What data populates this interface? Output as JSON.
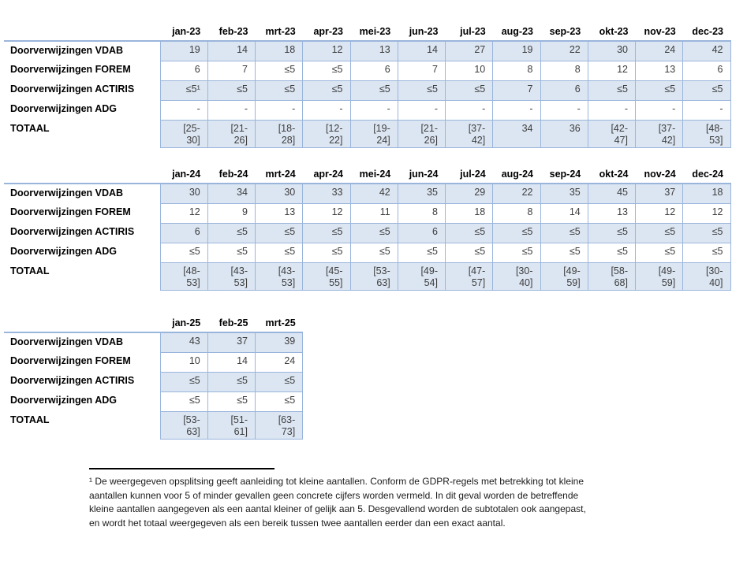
{
  "styles": {
    "cell_fill": "#dce6f2",
    "cell_border": "#9ab5dc",
    "footnote_rule_color": "#000000"
  },
  "tables": [
    {
      "name": "referrals-2023",
      "months": [
        "jan-23",
        "feb-23",
        "mrt-23",
        "apr-23",
        "mei-23",
        "jun-23",
        "jul-23",
        "aug-23",
        "sep-23",
        "okt-23",
        "nov-23",
        "dec-23"
      ],
      "rows": [
        {
          "label": "Doorverwijzingen VDAB",
          "shaded": true,
          "total": false,
          "values": [
            "19",
            "14",
            "18",
            "12",
            "13",
            "14",
            "27",
            "19",
            "22",
            "30",
            "24",
            "42"
          ]
        },
        {
          "label": "Doorverwijzingen FOREM",
          "shaded": false,
          "total": false,
          "values": [
            "6",
            "7",
            "≤5",
            "≤5",
            "6",
            "7",
            "10",
            "8",
            "8",
            "12",
            "13",
            "6"
          ]
        },
        {
          "label": "Doorverwijzingen ACTIRIS",
          "shaded": true,
          "total": false,
          "values": [
            "≤5¹",
            "≤5",
            "≤5",
            "≤5",
            "≤5",
            "≤5",
            "≤5",
            "7",
            "6",
            "≤5",
            "≤5",
            "≤5"
          ]
        },
        {
          "label": "Doorverwijzingen ADG",
          "shaded": false,
          "total": false,
          "values": [
            "-",
            "-",
            "-",
            "-",
            "-",
            "-",
            "-",
            "-",
            "-",
            "-",
            "-",
            "-"
          ]
        },
        {
          "label": "TOTAAL",
          "shaded": true,
          "total": true,
          "values": [
            "[25-30]",
            "[21-26]",
            "[18-28]",
            "[12-22]",
            "[19-24]",
            "[21-26]",
            "[37-42]",
            "34",
            "36",
            "[42-47]",
            "[37-42]",
            "[48-53]"
          ]
        }
      ]
    },
    {
      "name": "referrals-2024",
      "months": [
        "jan-24",
        "feb-24",
        "mrt-24",
        "apr-24",
        "mei-24",
        "jun-24",
        "jul-24",
        "aug-24",
        "sep-24",
        "okt-24",
        "nov-24",
        "dec-24"
      ],
      "rows": [
        {
          "label": "Doorverwijzingen VDAB",
          "shaded": true,
          "total": false,
          "values": [
            "30",
            "34",
            "30",
            "33",
            "42",
            "35",
            "29",
            "22",
            "35",
            "45",
            "37",
            "18"
          ]
        },
        {
          "label": "Doorverwijzingen FOREM",
          "shaded": false,
          "total": false,
          "values": [
            "12",
            "9",
            "13",
            "12",
            "11",
            "8",
            "18",
            "8",
            "14",
            "13",
            "12",
            "12"
          ]
        },
        {
          "label": "Doorverwijzingen ACTIRIS",
          "shaded": true,
          "total": false,
          "values": [
            "6",
            "≤5",
            "≤5",
            "≤5",
            "≤5",
            "6",
            "≤5",
            "≤5",
            "≤5",
            "≤5",
            "≤5",
            "≤5"
          ]
        },
        {
          "label": "Doorverwijzingen ADG",
          "shaded": false,
          "total": false,
          "values": [
            "≤5",
            "≤5",
            "≤5",
            "≤5",
            "≤5",
            "≤5",
            "≤5",
            "≤5",
            "≤5",
            "≤5",
            "≤5",
            "≤5"
          ]
        },
        {
          "label": "TOTAAL",
          "shaded": true,
          "total": true,
          "values": [
            "[48-53]",
            "[43-53]",
            "[43-53]",
            "[45-55]",
            "[53-63]",
            "[49-54]",
            "[47-57]",
            "[30-40]",
            "[49-59]",
            "[58-68]",
            "[49-59]",
            "[30-40]"
          ]
        }
      ]
    },
    {
      "name": "referrals-2025",
      "months": [
        "jan-25",
        "feb-25",
        "mrt-25"
      ],
      "rows": [
        {
          "label": "Doorverwijzingen VDAB",
          "shaded": true,
          "total": false,
          "values": [
            "43",
            "37",
            "39"
          ]
        },
        {
          "label": "Doorverwijzingen FOREM",
          "shaded": false,
          "total": false,
          "values": [
            "10",
            "14",
            "24"
          ]
        },
        {
          "label": "Doorverwijzingen ACTIRIS",
          "shaded": true,
          "total": false,
          "values": [
            "≤5",
            "≤5",
            "≤5"
          ]
        },
        {
          "label": "Doorverwijzingen ADG",
          "shaded": false,
          "total": false,
          "values": [
            "≤5",
            "≤5",
            "≤5"
          ]
        },
        {
          "label": "TOTAAL",
          "shaded": true,
          "total": true,
          "values": [
            "[53-63]",
            "[51-61]",
            "[63-73]"
          ]
        }
      ]
    }
  ],
  "footnote": {
    "lines": [
      "¹ De weergegeven opsplitsing geeft aanleiding tot kleine aantallen. Conform de GDPR-regels met betrekking tot kleine",
      "aantallen kunnen voor 5 of minder gevallen geen concrete cijfers worden vermeld. In dit geval worden de betreffende",
      "kleine aantallen aangegeven als een aantal kleiner of gelijk aan 5. Desgevallend worden de subtotalen ook aangepast,",
      "en wordt het totaal weergegeven als een bereik tussen twee aantallen eerder dan een exact aantal."
    ]
  }
}
